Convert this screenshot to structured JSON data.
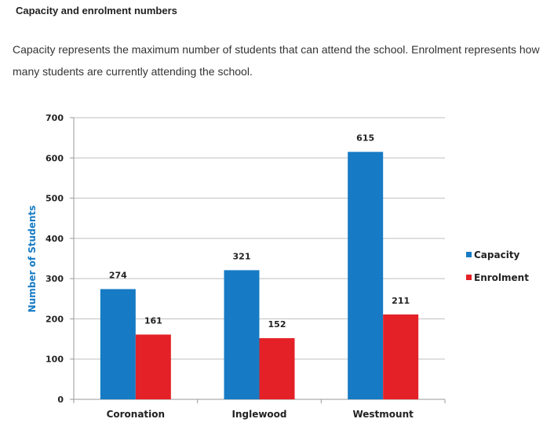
{
  "heading": "Capacity and enrolment numbers",
  "description": "Capacity represents the maximum number of students that can attend the school. Enrolment represents how many students are currently attending the school.",
  "chart_data": {
    "type": "bar",
    "categories": [
      "Coronation",
      "Inglewood",
      "Westmount"
    ],
    "series": [
      {
        "name": "Capacity",
        "values": [
          274,
          321,
          615
        ],
        "color": "#167bc4"
      },
      {
        "name": "Enrolment",
        "values": [
          161,
          152,
          211
        ],
        "color": "#e32127"
      }
    ],
    "xlabel": "",
    "ylabel": "Number of Students",
    "ylabel_color": "#167bc4",
    "ylim": [
      0,
      700
    ],
    "yticks": [
      0,
      100,
      200,
      300,
      400,
      500,
      600,
      700
    ],
    "grid": true,
    "legend": "right",
    "data_labels": true
  }
}
